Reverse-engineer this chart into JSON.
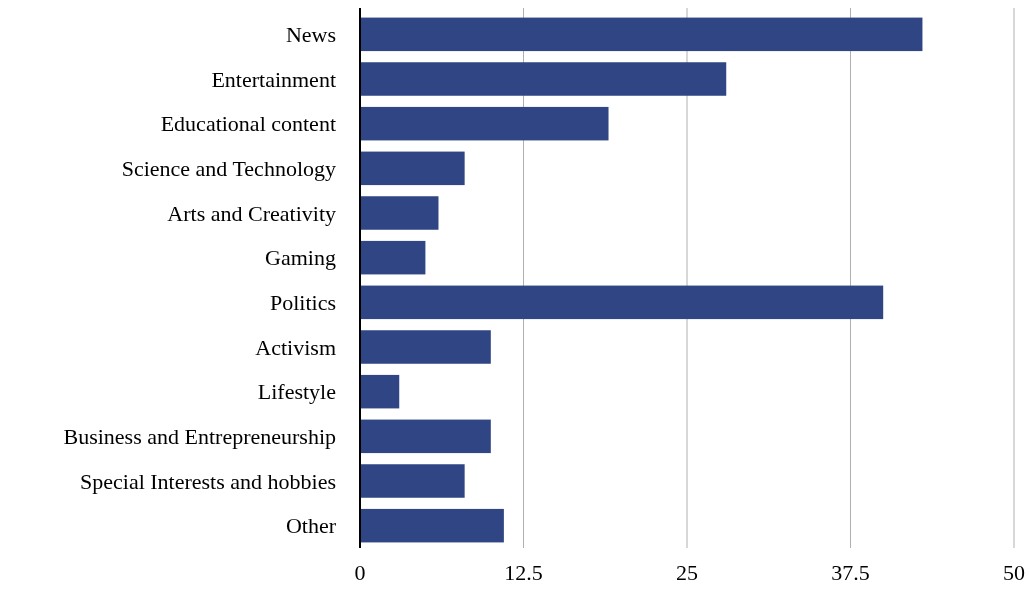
{
  "chart_data": {
    "type": "bar",
    "orientation": "horizontal",
    "categories": [
      "News",
      "Entertainment",
      "Educational content",
      "Science and Technology",
      "Arts and Creativity",
      "Gaming",
      "Politics",
      "Activism",
      "Lifestyle",
      "Business and Entrepreneurship",
      "Special Interests and hobbies",
      "Other"
    ],
    "values": [
      43,
      28,
      19,
      8,
      6,
      5,
      40,
      10,
      3,
      10,
      8,
      11
    ],
    "color": "#2f4584",
    "xlim": [
      0,
      50
    ],
    "xticks": [
      0,
      12.5,
      25,
      37.5,
      50
    ],
    "grid": "x"
  }
}
